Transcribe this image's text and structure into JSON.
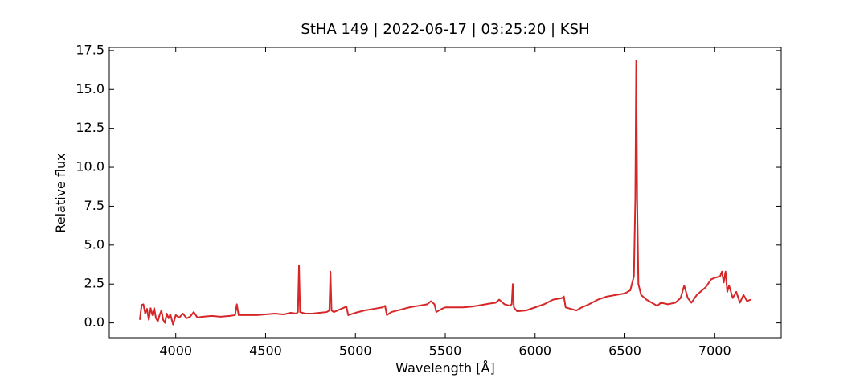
{
  "chart_data": {
    "type": "line",
    "title": "StHA 149 | 2022-06-17 | 03:25:20 | KSH",
    "x_label": "Wavelength [Å]",
    "y_label": "Relative flux",
    "color": "#d62728",
    "x": [
      3800,
      3810,
      3820,
      3830,
      3840,
      3850,
      3860,
      3870,
      3880,
      3890,
      3900,
      3910,
      3920,
      3930,
      3940,
      3950,
      3960,
      3970,
      3985,
      4000,
      4020,
      4040,
      4060,
      4080,
      4100,
      4120,
      4150,
      4200,
      4250,
      4300,
      4330,
      4340,
      4350,
      4400,
      4450,
      4500,
      4550,
      4600,
      4640,
      4670,
      4680,
      4686,
      4692,
      4720,
      4760,
      4800,
      4840,
      4855,
      4861,
      4867,
      4880,
      4920,
      4950,
      4960,
      5000,
      5050,
      5100,
      5150,
      5165,
      5175,
      5200,
      5250,
      5300,
      5350,
      5400,
      5420,
      5440,
      5450,
      5480,
      5500,
      5550,
      5600,
      5650,
      5700,
      5750,
      5780,
      5800,
      5830,
      5860,
      5870,
      5876,
      5882,
      5900,
      5950,
      6000,
      6050,
      6100,
      6150,
      6160,
      6170,
      6200,
      6230,
      6260,
      6300,
      6350,
      6400,
      6450,
      6500,
      6530,
      6550,
      6558,
      6563,
      6568,
      6575,
      6590,
      6620,
      6650,
      6680,
      6700,
      6740,
      6780,
      6810,
      6830,
      6850,
      6870,
      6900,
      6950,
      6980,
      7000,
      7030,
      7040,
      7050,
      7060,
      7070,
      7080,
      7100,
      7120,
      7140,
      7160,
      7180,
      7200
    ],
    "values": [
      0.2,
      1.15,
      1.2,
      0.6,
      0.9,
      0.2,
      0.95,
      0.5,
      0.95,
      0.3,
      0.1,
      0.5,
      0.8,
      0.2,
      0.0,
      0.6,
      0.3,
      0.55,
      -0.1,
      0.5,
      0.35,
      0.6,
      0.3,
      0.4,
      0.7,
      0.35,
      0.4,
      0.45,
      0.4,
      0.45,
      0.5,
      1.2,
      0.5,
      0.5,
      0.5,
      0.55,
      0.6,
      0.55,
      0.65,
      0.6,
      0.7,
      3.7,
      0.7,
      0.6,
      0.6,
      0.65,
      0.7,
      0.8,
      3.3,
      0.8,
      0.7,
      0.9,
      1.05,
      0.5,
      0.65,
      0.8,
      0.9,
      1.0,
      1.1,
      0.5,
      0.7,
      0.85,
      1.0,
      1.1,
      1.2,
      1.4,
      1.2,
      0.7,
      0.9,
      1.0,
      1.0,
      1.0,
      1.05,
      1.15,
      1.25,
      1.3,
      1.5,
      1.2,
      1.1,
      1.2,
      2.5,
      1.0,
      0.75,
      0.8,
      1.0,
      1.2,
      1.5,
      1.6,
      1.7,
      1.0,
      0.9,
      0.8,
      1.0,
      1.2,
      1.5,
      1.7,
      1.8,
      1.9,
      2.1,
      3.0,
      8.0,
      16.85,
      8.0,
      2.5,
      1.8,
      1.5,
      1.3,
      1.1,
      1.3,
      1.2,
      1.3,
      1.6,
      2.4,
      1.6,
      1.3,
      1.8,
      2.3,
      2.8,
      2.9,
      3.0,
      3.3,
      2.6,
      3.3,
      2.0,
      2.4,
      1.6,
      2.0,
      1.3,
      1.8,
      1.4,
      1.5
    ],
    "xlim": [
      3630,
      7370
    ],
    "xticks": [
      4000,
      4500,
      5000,
      5500,
      6000,
      6500,
      7000
    ],
    "ylim": [
      -0.95,
      17.7
    ],
    "yticks": [
      {
        "value": 0,
        "label": "0.0"
      },
      2.5,
      {
        "value": 5,
        "label": "5.0"
      },
      7.5,
      {
        "value": 10,
        "label": "10.0"
      },
      12.5,
      {
        "value": 15,
        "label": "15.0"
      },
      17.5
    ]
  }
}
